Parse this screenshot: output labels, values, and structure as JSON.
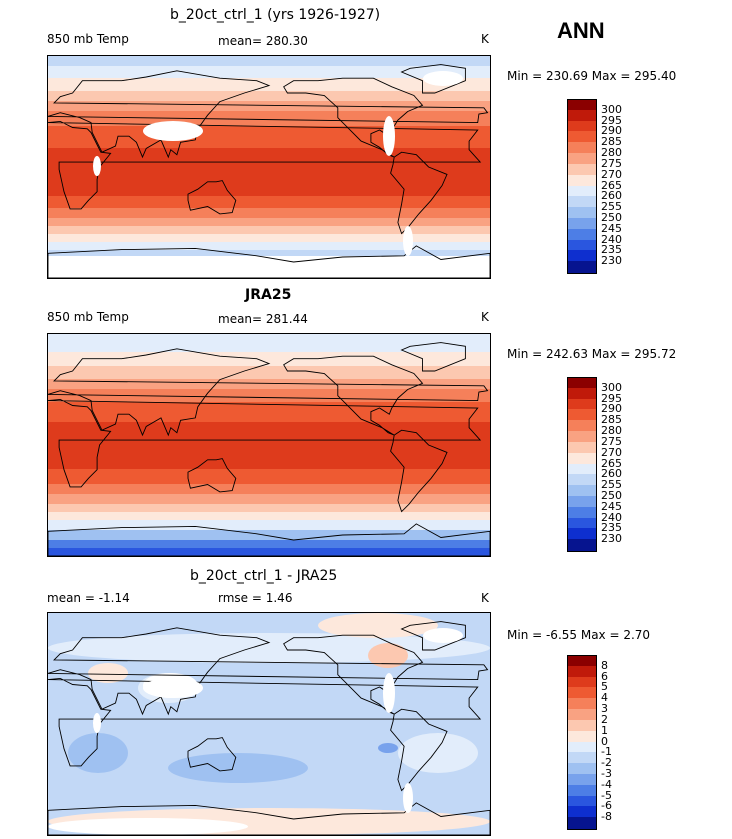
{
  "season": "ANN",
  "panels": [
    {
      "title": "b_20ct_ctrl_1 (yrs 1926-1927)",
      "variable": "850 mb Temp",
      "stat": "mean= 280.30",
      "units": "K",
      "minmax": "Min = 230.69 Max = 295.40",
      "kind": "model"
    },
    {
      "title": "JRA25",
      "variable": "850 mb Temp",
      "stat": "mean= 281.44",
      "units": "K",
      "minmax": "Min = 242.63 Max = 295.72",
      "kind": "obs"
    },
    {
      "title": "b_20ct_ctrl_1 - JRA25",
      "variable": "mean =  -1.14",
      "stat": "rmse =   1.46",
      "units": "K",
      "minmax": "Min =  -6.55 Max =   2.70",
      "kind": "diff"
    }
  ],
  "colorbars": {
    "abs": {
      "labels": [
        "300",
        "295",
        "290",
        "285",
        "280",
        "275",
        "270",
        "265",
        "260",
        "255",
        "250",
        "245",
        "240",
        "235",
        "230"
      ],
      "colors": [
        "#8b0000",
        "#c01a0a",
        "#de3b1c",
        "#ee5a32",
        "#f5805a",
        "#f9a282",
        "#fcc8b0",
        "#fde8dc",
        "#e2edfb",
        "#c2d8f6",
        "#9fc1f1",
        "#78a2ec",
        "#4d7ee6",
        "#2a56df",
        "#0e2fcf",
        "#06148f"
      ]
    },
    "diff": {
      "labels": [
        "8",
        "6",
        "5",
        "4",
        "3",
        "2",
        "1",
        "0",
        "-1",
        "-2",
        "-3",
        "-4",
        "-5",
        "-6",
        "-8"
      ],
      "colors": [
        "#8b0000",
        "#c01a0a",
        "#de3b1c",
        "#ee5a32",
        "#f5805a",
        "#f9a282",
        "#fcc8b0",
        "#fde8dc",
        "#e2edfb",
        "#c2d8f6",
        "#9fc1f1",
        "#78a2ec",
        "#4d7ee6",
        "#2a56df",
        "#0e2fcf",
        "#06148f"
      ]
    }
  }
}
